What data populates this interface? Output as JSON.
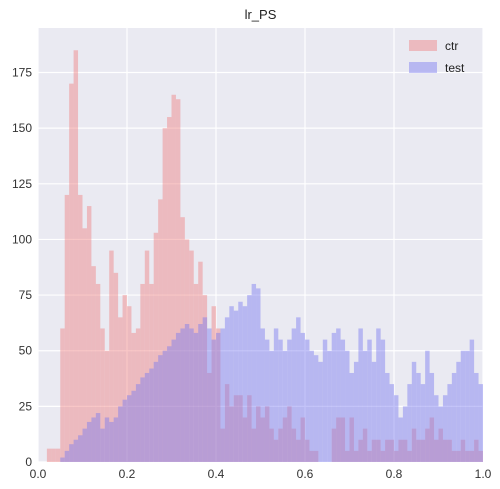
{
  "chart_data": {
    "type": "bar",
    "title": "lr_PS",
    "xlabel": "",
    "ylabel": "",
    "xlim": [
      0.0,
      1.0
    ],
    "ylim": [
      0,
      195
    ],
    "xticks": [
      0.0,
      0.2,
      0.4,
      0.6,
      0.8,
      1.0
    ],
    "xtick_labels": [
      "0.0",
      "0.2",
      "0.4",
      "0.6",
      "0.8",
      "1.0"
    ],
    "yticks": [
      0,
      25,
      50,
      75,
      100,
      125,
      150,
      175
    ],
    "ytick_labels": [
      "0",
      "25",
      "50",
      "75",
      "100",
      "125",
      "150",
      "175"
    ],
    "bins": 100,
    "bin_range": [
      0.0,
      1.0
    ],
    "grid": true,
    "legend_position": "top-right",
    "series": [
      {
        "name": "ctr",
        "color": "#f08080",
        "opacity": 0.45,
        "values": [
          0,
          0,
          6,
          6,
          6,
          60,
          120,
          170,
          185,
          120,
          105,
          115,
          88,
          80,
          60,
          50,
          95,
          85,
          65,
          75,
          70,
          58,
          60,
          80,
          95,
          80,
          103,
          118,
          150,
          155,
          165,
          163,
          110,
          100,
          95,
          80,
          90,
          75,
          40,
          70,
          60,
          15,
          35,
          25,
          30,
          30,
          20,
          30,
          15,
          25,
          20,
          25,
          15,
          10,
          15,
          20,
          25,
          15,
          10,
          20,
          10,
          5,
          5,
          0,
          0,
          0,
          15,
          20,
          20,
          5,
          20,
          5,
          10,
          15,
          5,
          10,
          10,
          5,
          10,
          10,
          5,
          10,
          10,
          5,
          15,
          10,
          10,
          15,
          20,
          10,
          15,
          10,
          10,
          5,
          5,
          10,
          5,
          5,
          10,
          5
        ]
      },
      {
        "name": "test",
        "color": "#7b7bf0",
        "opacity": 0.45,
        "values": [
          0,
          0,
          0,
          0,
          0,
          2,
          5,
          8,
          10,
          12,
          15,
          18,
          20,
          22,
          15,
          20,
          18,
          20,
          25,
          28,
          30,
          32,
          35,
          38,
          40,
          42,
          45,
          48,
          50,
          52,
          55,
          58,
          60,
          62,
          60,
          58,
          62,
          65,
          60,
          55,
          58,
          60,
          65,
          70,
          68,
          72,
          70,
          75,
          80,
          78,
          60,
          55,
          50,
          60,
          55,
          50,
          55,
          60,
          65,
          58,
          55,
          50,
          48,
          45,
          55,
          50,
          58,
          60,
          55,
          50,
          40,
          45,
          60,
          50,
          55,
          45,
          60,
          55,
          40,
          35,
          30,
          20,
          25,
          35,
          45,
          40,
          35,
          50,
          40,
          30,
          25,
          30,
          35,
          40,
          45,
          50,
          50,
          55,
          40,
          35
        ]
      }
    ]
  }
}
